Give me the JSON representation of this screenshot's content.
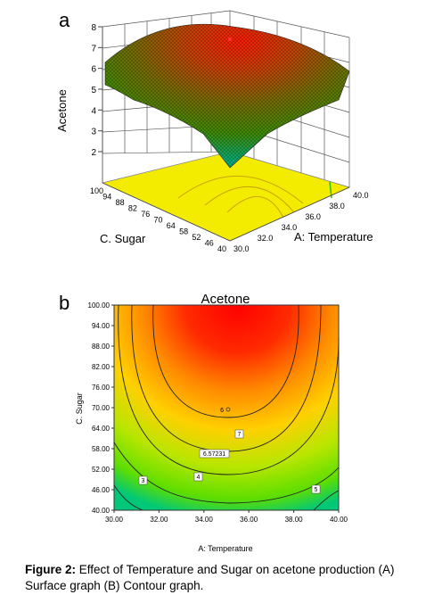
{
  "figure": {
    "panel_a_letter": "a",
    "panel_b_letter": "b",
    "caption_label": "Figure 2:",
    "caption_text": "Effect of Temperature and Sugar on acetone production (A) Surface graph (B) Contour graph."
  },
  "colors": {
    "high": "#ff0000",
    "mid_high": "#ff8c00",
    "mid": "#ffd700",
    "low": "#7fdc00",
    "lowest": "#00c070",
    "floor": "#f4ec00"
  },
  "chart_data": [
    {
      "type": "surface3d",
      "title": "",
      "zlabel": "Acetone",
      "xlabel": "A: Temperature",
      "ylabel": "C. Sugar",
      "z_ticks": [
        "2",
        "3",
        "4",
        "5",
        "6",
        "7",
        "8"
      ],
      "x_ticks": [
        "30.0",
        "32.0",
        "34.0",
        "36.0",
        "38.0",
        "40.0"
      ],
      "y_ticks": [
        "40",
        "46",
        "52",
        "58",
        "64",
        "70",
        "76",
        "82",
        "88",
        "94",
        "100"
      ],
      "zlim": [
        2,
        8
      ],
      "xlim": [
        30,
        40
      ],
      "ylim": [
        40,
        100
      ]
    },
    {
      "type": "contour",
      "title": "Acetone",
      "xlabel": "A: Temperature",
      "ylabel": "C. Sugar",
      "x_ticks": [
        "30.00",
        "32.00",
        "34.00",
        "36.00",
        "38.00",
        "40.00"
      ],
      "y_ticks": [
        "40.00",
        "46.00",
        "52.00",
        "58.00",
        "64.00",
        "70.00",
        "76.00",
        "82.00",
        "88.00",
        "94.00",
        "100.00"
      ],
      "xlim": [
        30,
        40
      ],
      "ylim": [
        40,
        100
      ],
      "contour_labels": [
        "3",
        "4",
        "5",
        "6.57231",
        "7",
        "5"
      ],
      "center_point_label": "6"
    }
  ]
}
